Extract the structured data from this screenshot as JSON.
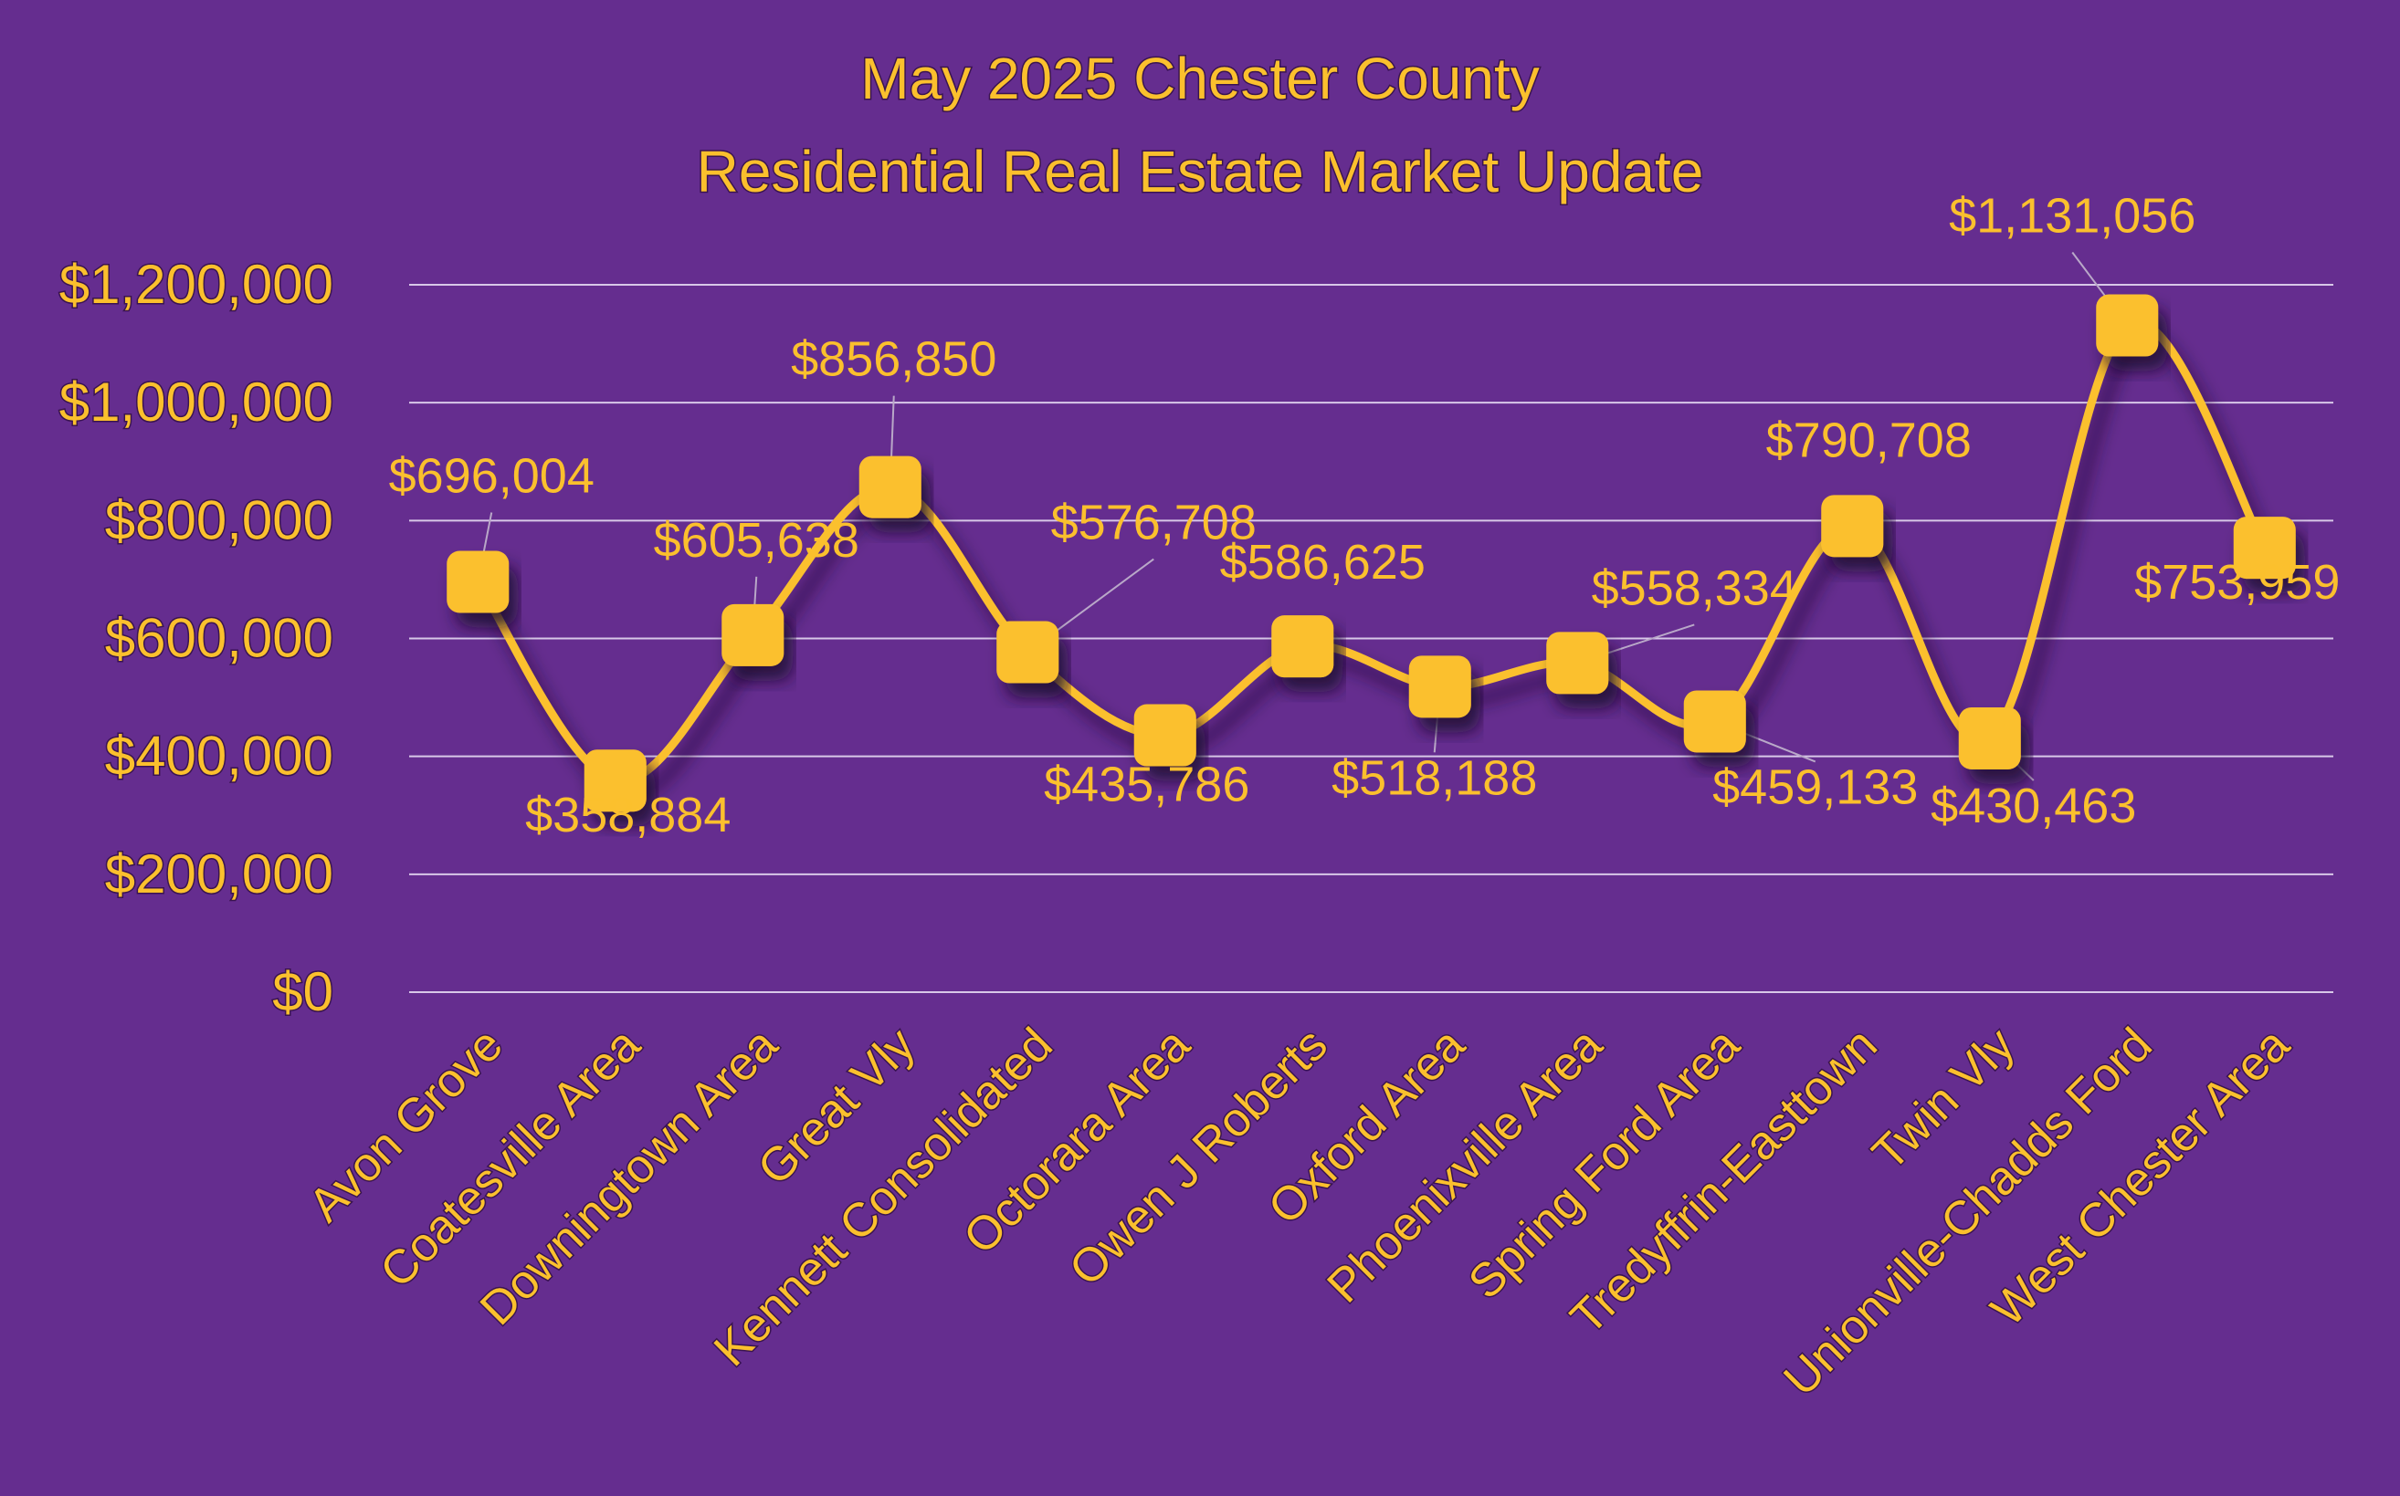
{
  "colors": {
    "background": "#652d8f",
    "accent": "#fbc02d",
    "grid": "#d8c8e8"
  },
  "chart_data": {
    "type": "line",
    "title": [
      "May 2025 Chester County",
      "Residential Real Estate Market Update"
    ],
    "xlabel": "",
    "ylabel": "",
    "ylim": [
      0,
      1200000
    ],
    "yticks": [
      0,
      200000,
      400000,
      600000,
      800000,
      1000000,
      1200000
    ],
    "ytick_labels": [
      "$0",
      "$200,000",
      "$400,000",
      "$600,000",
      "$800,000",
      "$1,000,000",
      "$1,200,000"
    ],
    "grid": true,
    "smooth": true,
    "marker": "rounded-square",
    "categories": [
      "Avon Grove",
      "Coatesville Area",
      "Downingtown Area",
      "Great Vly",
      "Kennett Consolidated",
      "Octorara Area",
      "Owen J Roberts",
      "Oxford Area",
      "Phoenixville Area",
      "Spring Ford Area",
      "Tredyffrin-Easttown",
      "Twin Vly",
      "Unionville-Chadds Ford",
      "West Chester Area"
    ],
    "series": [
      {
        "values": [
          696004,
          358884,
          605638,
          856850,
          576708,
          435786,
          586625,
          518188,
          558334,
          459133,
          790708,
          430463,
          1131056,
          753959
        ],
        "data_labels": [
          "$696,004",
          "$358,884",
          "$605,638",
          "$856,850",
          "$576,708",
          "$435,786",
          "$586,625",
          "$518,188",
          "$558,334",
          "$459,133",
          "$790,708",
          "$430,463",
          "$1,131,056",
          "$753,959"
        ]
      }
    ]
  }
}
